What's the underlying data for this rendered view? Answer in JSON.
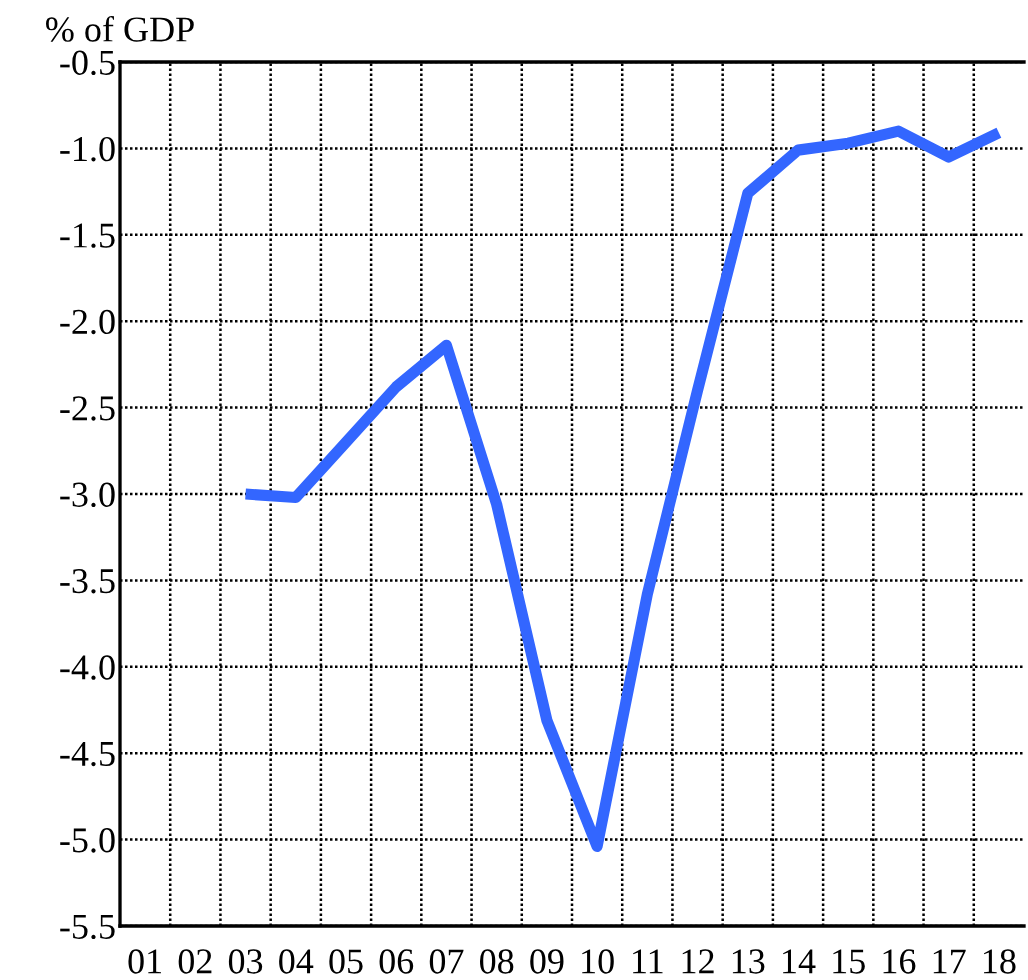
{
  "chart_data": {
    "type": "line",
    "ylabel": "% of GDP",
    "categories": [
      "01",
      "02",
      "03",
      "04",
      "05",
      "06",
      "07",
      "08",
      "09",
      "10",
      "11",
      "12",
      "13",
      "14",
      "15",
      "16",
      "17",
      "18"
    ],
    "series": [
      {
        "color": "#3366ff",
        "values": [
          null,
          null,
          -3.0,
          -3.02,
          -2.7,
          -2.38,
          -2.14,
          -3.06,
          -4.31,
          -5.04,
          -3.58,
          -2.4,
          -1.26,
          -1.01,
          -0.97,
          -0.9,
          -1.05,
          -0.91
        ]
      }
    ],
    "ylim": [
      -5.5,
      -0.5
    ],
    "yticks": [
      {
        "value": -5.5,
        "label": "-5.5"
      },
      {
        "value": -5.0,
        "label": "-5.0"
      },
      {
        "value": -4.5,
        "label": "-4.5"
      },
      {
        "value": -4.0,
        "label": "-4.0"
      },
      {
        "value": -3.5,
        "label": "-3.5"
      },
      {
        "value": -3.0,
        "label": "-3.0"
      },
      {
        "value": -2.5,
        "label": "-2.5"
      },
      {
        "value": -2.0,
        "label": "-2.0"
      },
      {
        "value": -1.5,
        "label": "-1.5"
      },
      {
        "value": -1.0,
        "label": "-1.0"
      },
      {
        "value": -0.5,
        "label": "-0.5"
      }
    ],
    "grid": true,
    "line_style": "solid",
    "marker": "none"
  }
}
